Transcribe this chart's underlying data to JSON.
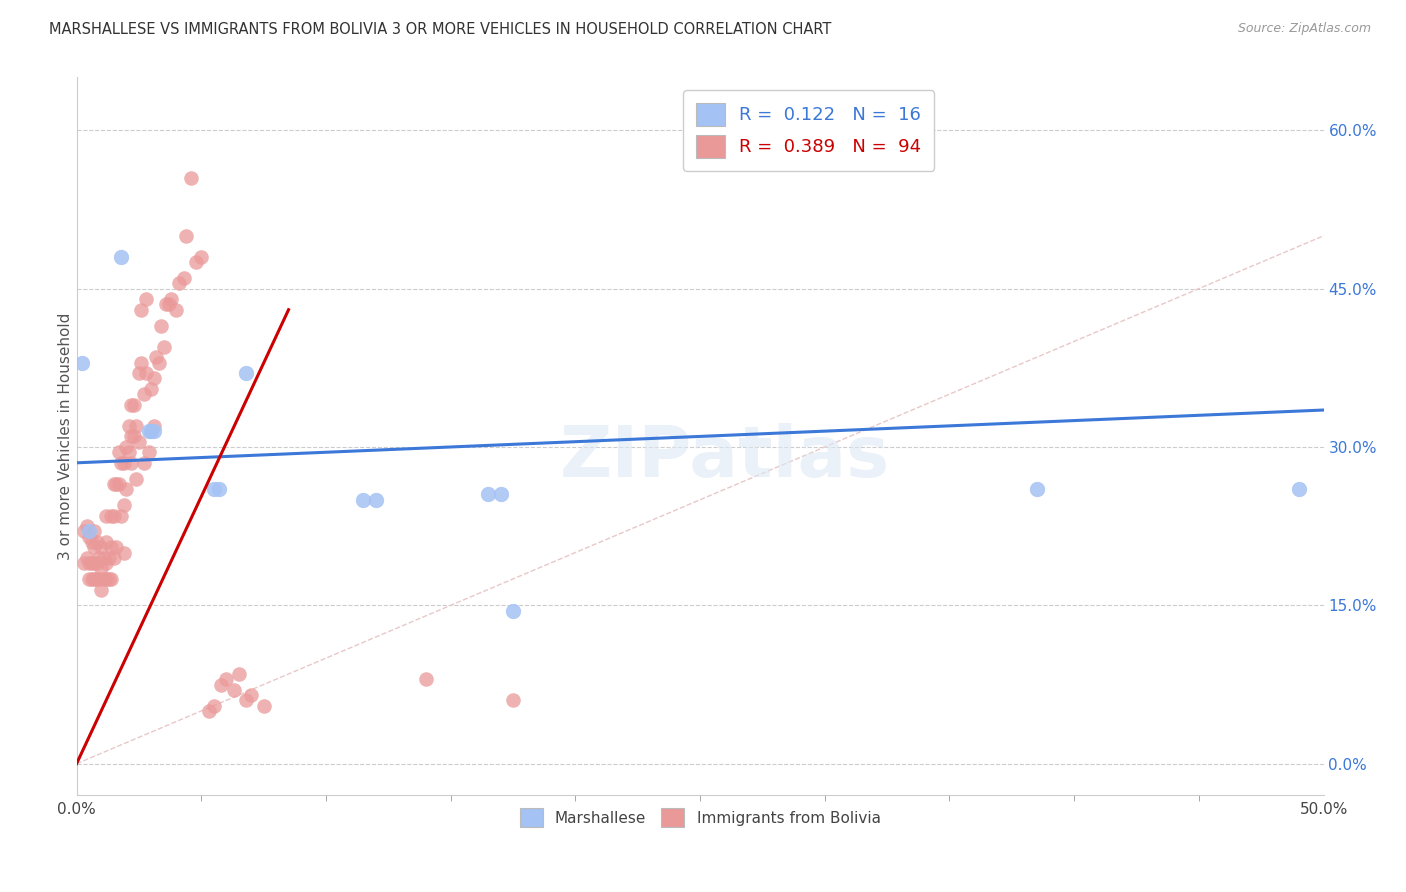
{
  "title": "MARSHALLESE VS IMMIGRANTS FROM BOLIVIA 3 OR MORE VEHICLES IN HOUSEHOLD CORRELATION CHART",
  "source": "Source: ZipAtlas.com",
  "ylabel": "3 or more Vehicles in Household",
  "xlim": [
    0.0,
    0.5
  ],
  "ylim": [
    -0.03,
    0.65
  ],
  "xticks": [
    0.0,
    0.5
  ],
  "xticklabels": [
    "0.0%",
    "50.0%"
  ],
  "yticks": [
    0.0,
    0.15,
    0.3,
    0.45,
    0.6
  ],
  "yticklabels": [
    "0.0%",
    "15.0%",
    "30.0%",
    "45.0%",
    "60.0%"
  ],
  "blue_color": "#a4c2f4",
  "pink_color": "#ea9999",
  "blue_line_color": "#3c78d8",
  "pink_line_color": "#cc0000",
  "diagonal_color": "#e8c8c8",
  "legend_R1": "0.122",
  "legend_N1": "16",
  "legend_R2": "0.389",
  "legend_N2": "94",
  "legend_label1": "Marshallese",
  "legend_label2": "Immigrants from Bolivia",
  "watermark": "ZIPatlas",
  "blue_line_x0": 0.0,
  "blue_line_y0": 0.285,
  "blue_line_x1": 0.5,
  "blue_line_y1": 0.335,
  "pink_line_x0": 0.0,
  "pink_line_y0": 0.0,
  "pink_line_x1": 0.085,
  "pink_line_y1": 0.43,
  "blue_scatter_x": [
    0.002,
    0.005,
    0.018,
    0.029,
    0.03,
    0.031,
    0.055,
    0.057,
    0.068,
    0.115,
    0.12,
    0.165,
    0.17,
    0.175,
    0.385,
    0.49
  ],
  "blue_scatter_y": [
    0.38,
    0.22,
    0.48,
    0.315,
    0.315,
    0.315,
    0.26,
    0.26,
    0.37,
    0.25,
    0.25,
    0.255,
    0.255,
    0.145,
    0.26,
    0.26
  ],
  "pink_scatter_x": [
    0.003,
    0.003,
    0.004,
    0.004,
    0.005,
    0.005,
    0.005,
    0.006,
    0.006,
    0.006,
    0.007,
    0.007,
    0.007,
    0.007,
    0.008,
    0.008,
    0.008,
    0.009,
    0.009,
    0.01,
    0.01,
    0.01,
    0.011,
    0.011,
    0.012,
    0.012,
    0.012,
    0.012,
    0.013,
    0.013,
    0.014,
    0.014,
    0.014,
    0.015,
    0.015,
    0.015,
    0.016,
    0.016,
    0.017,
    0.017,
    0.018,
    0.018,
    0.019,
    0.019,
    0.019,
    0.02,
    0.02,
    0.021,
    0.021,
    0.022,
    0.022,
    0.022,
    0.023,
    0.023,
    0.024,
    0.024,
    0.025,
    0.025,
    0.026,
    0.026,
    0.027,
    0.027,
    0.028,
    0.028,
    0.029,
    0.03,
    0.03,
    0.031,
    0.031,
    0.032,
    0.033,
    0.034,
    0.035,
    0.036,
    0.037,
    0.038,
    0.04,
    0.041,
    0.043,
    0.044,
    0.046,
    0.048,
    0.05,
    0.053,
    0.055,
    0.058,
    0.06,
    0.063,
    0.065,
    0.068,
    0.07,
    0.075,
    0.14,
    0.175
  ],
  "pink_scatter_y": [
    0.19,
    0.22,
    0.195,
    0.225,
    0.175,
    0.19,
    0.215,
    0.175,
    0.19,
    0.21,
    0.175,
    0.19,
    0.205,
    0.22,
    0.175,
    0.19,
    0.21,
    0.175,
    0.195,
    0.165,
    0.185,
    0.205,
    0.175,
    0.195,
    0.175,
    0.19,
    0.21,
    0.235,
    0.175,
    0.195,
    0.175,
    0.205,
    0.235,
    0.195,
    0.235,
    0.265,
    0.205,
    0.265,
    0.265,
    0.295,
    0.235,
    0.285,
    0.2,
    0.245,
    0.285,
    0.26,
    0.3,
    0.295,
    0.32,
    0.285,
    0.31,
    0.34,
    0.31,
    0.34,
    0.27,
    0.32,
    0.37,
    0.305,
    0.38,
    0.43,
    0.285,
    0.35,
    0.37,
    0.44,
    0.295,
    0.315,
    0.355,
    0.32,
    0.365,
    0.385,
    0.38,
    0.415,
    0.395,
    0.435,
    0.435,
    0.44,
    0.43,
    0.455,
    0.46,
    0.5,
    0.555,
    0.475,
    0.48,
    0.05,
    0.055,
    0.075,
    0.08,
    0.07,
    0.085,
    0.06,
    0.065,
    0.055,
    0.08,
    0.06
  ]
}
